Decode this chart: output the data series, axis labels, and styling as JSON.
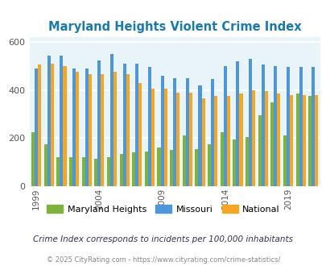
{
  "title": "Maryland Heights Violent Crime Index",
  "years": [
    1999,
    2000,
    2001,
    2002,
    2003,
    2004,
    2005,
    2006,
    2007,
    2008,
    2009,
    2010,
    2011,
    2012,
    2013,
    2014,
    2015,
    2016,
    2017,
    2018,
    2019,
    2020,
    2021
  ],
  "maryland_heights": [
    225,
    175,
    120,
    120,
    120,
    115,
    120,
    135,
    140,
    145,
    160,
    150,
    210,
    155,
    175,
    225,
    195,
    205,
    295,
    350,
    210,
    385,
    375
  ],
  "missouri": [
    490,
    545,
    545,
    490,
    490,
    525,
    550,
    510,
    510,
    495,
    460,
    450,
    450,
    420,
    445,
    500,
    520,
    530,
    505,
    500,
    495,
    495,
    495
  ],
  "national": [
    505,
    510,
    500,
    475,
    465,
    465,
    475,
    465,
    430,
    405,
    405,
    390,
    390,
    365,
    375,
    375,
    385,
    400,
    395,
    385,
    380,
    380,
    380
  ],
  "maryland_heights_color": "#7db33a",
  "missouri_color": "#4d96d9",
  "national_color": "#f5a623",
  "bg_color": "#e8f4f8",
  "ylim": [
    0,
    620
  ],
  "yticks": [
    0,
    200,
    400,
    600
  ],
  "x_tick_labels": [
    "1999",
    "2004",
    "2009",
    "2014",
    "2019"
  ],
  "x_tick_years": [
    1999,
    2004,
    2009,
    2014,
    2019
  ],
  "subtitle": "Crime Index corresponds to incidents per 100,000 inhabitants",
  "footer": "© 2025 CityRating.com - https://www.cityrating.com/crime-statistics/",
  "title_color": "#1a7aab",
  "subtitle_color": "#333355",
  "footer_color": "#888888"
}
